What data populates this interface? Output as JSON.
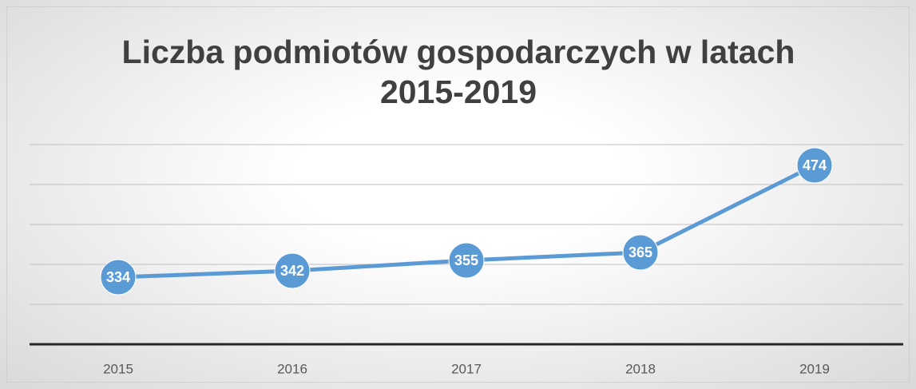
{
  "chart_data": {
    "type": "line",
    "title": "Liczba podmiotów gospodarczych w latach 2015-2019",
    "categories": [
      "2015",
      "2016",
      "2017",
      "2018",
      "2019"
    ],
    "values": [
      334,
      342,
      355,
      365,
      474
    ],
    "color": "#5b9bd5",
    "ylim": [
      250,
      500
    ],
    "yticks": [
      250,
      300,
      350,
      400,
      450,
      500
    ],
    "grid": true
  }
}
